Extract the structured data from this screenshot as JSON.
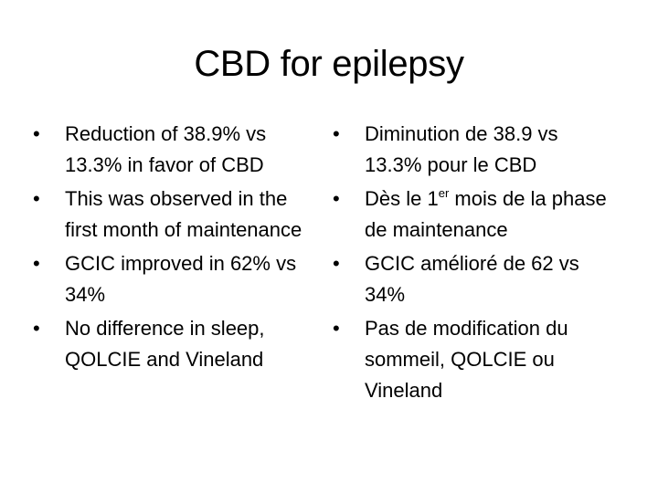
{
  "slide": {
    "title": "CBD for epilepsy",
    "bullet_char": "•",
    "left_column": {
      "items": [
        "Reduction of 38.9% vs 13.3% in favor of CBD",
        "This was observed in the first month of maintenance",
        "GCIC improved in 62% vs 34%",
        "No difference in sleep, QOLCIE and Vineland"
      ]
    },
    "right_column": {
      "items": [
        {
          "text": "Diminution de 38.9 vs 13.3% pour le CBD"
        },
        {
          "before": "Dès le 1",
          "sup": "er",
          "after": " mois de la phase de maintenance"
        },
        {
          "text": "GCIC amélioré de 62 vs 34%"
        },
        {
          "text": "Pas de modification du sommeil, QOLCIE ou Vineland"
        }
      ]
    }
  }
}
